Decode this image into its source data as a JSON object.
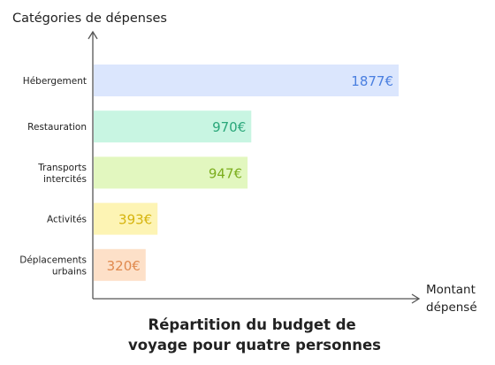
{
  "chart_data": {
    "type": "bar",
    "orientation": "horizontal",
    "title": "Répartition du budget de voyage pour quatre personnes",
    "title_lines": [
      "Répartition du budget de",
      "voyage pour quatre personnes"
    ],
    "ylabel": "Catégories de dépenses",
    "xlabel": "Montant dépensé",
    "xlabel_lines": [
      "Montant",
      "dépensé"
    ],
    "grid": false,
    "legend": "none",
    "xlim": [
      0,
      1980
    ],
    "unit_suffix": "€",
    "categories": [
      {
        "label_lines": [
          "Hébergement"
        ],
        "value": 1877,
        "label": "1877€",
        "fill": "#dbe6fd",
        "text_color": "#4a7fe0"
      },
      {
        "label_lines": [
          "Restauration"
        ],
        "value": 970,
        "label": "970€",
        "fill": "#c8f5e2",
        "text_color": "#2aa77a"
      },
      {
        "label_lines": [
          "Transports",
          "intercités"
        ],
        "value": 947,
        "label": "947€",
        "fill": "#e2f7bf",
        "text_color": "#7cae1e"
      },
      {
        "label_lines": [
          "Activités"
        ],
        "value": 393,
        "label": "393€",
        "fill": "#fdf4b4",
        "text_color": "#d6b40e"
      },
      {
        "label_lines": [
          "Déplacements",
          "urbains"
        ],
        "value": 320,
        "label": "320€",
        "fill": "#fde0c8",
        "text_color": "#e0894e"
      }
    ]
  }
}
